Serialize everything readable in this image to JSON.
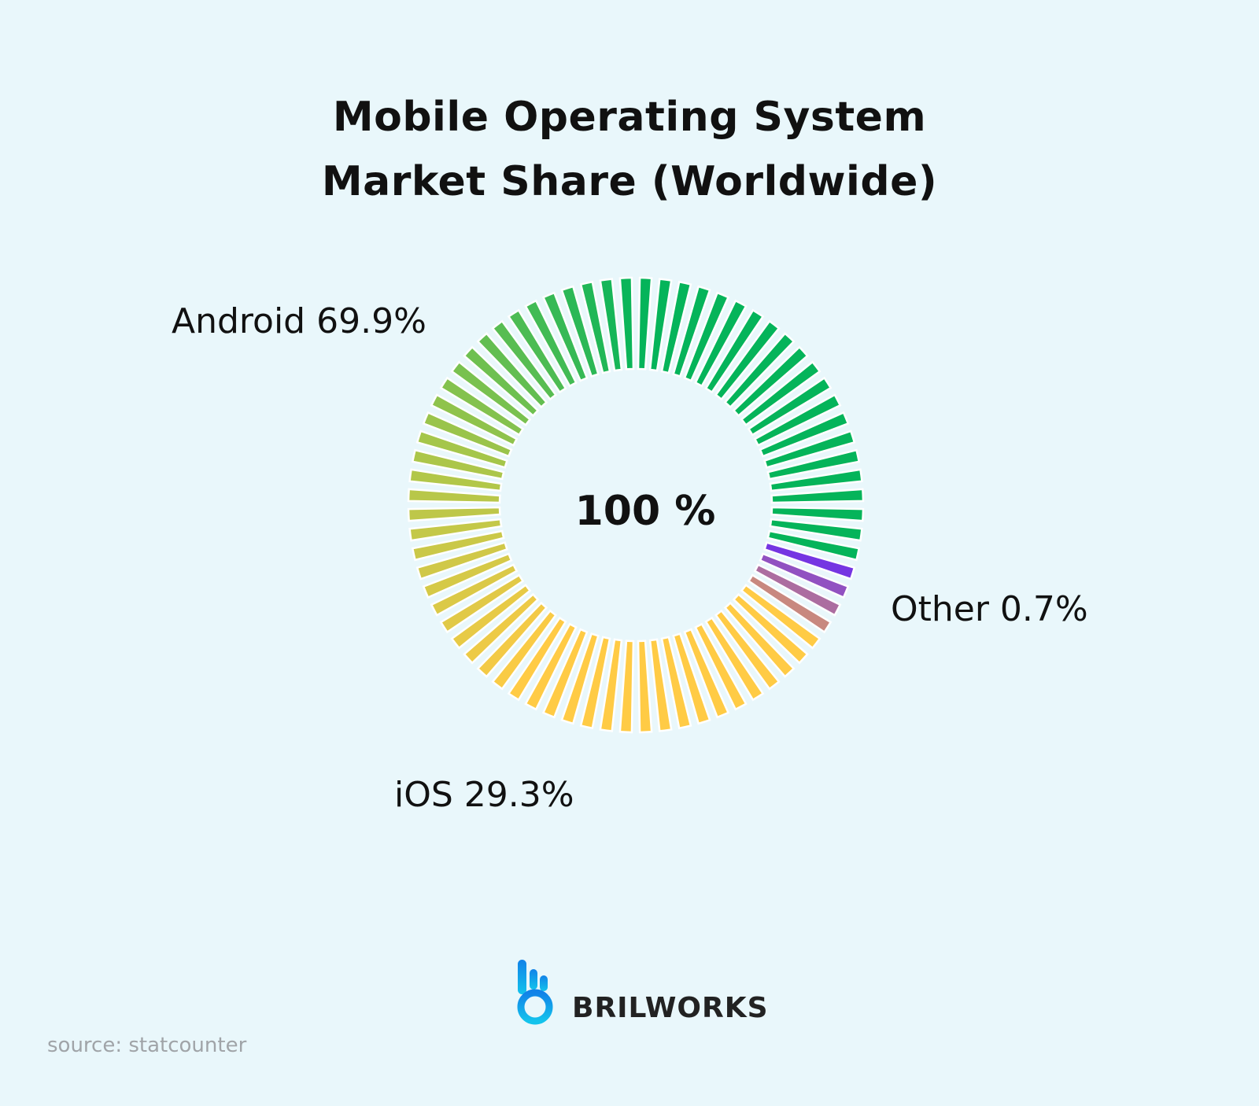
{
  "title_line1": "Mobile Operating System",
  "title_line2": "Market Share (Worldwide)",
  "center_text": "100 %",
  "labels": {
    "android": "Android 69.9%",
    "ios": "iOS 29.3%",
    "other": "Other 0.7%"
  },
  "brand": {
    "name": "BRILWORKS",
    "logo_icon": "brilworks-logo-icon"
  },
  "source": "source: statcounter",
  "colors": {
    "android": "#05b45a",
    "android_blend": "#a8c64a",
    "ios": "#ffcb45",
    "other": "#6a2aef",
    "other_blend": "#d99a6a",
    "background": "#e9f7fb",
    "logo_blue": "#1282e8",
    "logo_cyan": "#13c3ec"
  },
  "chart_data": {
    "type": "pie",
    "style": "donut",
    "categories": [
      "Android",
      "iOS",
      "Other"
    ],
    "values": [
      69.9,
      29.3,
      0.7
    ],
    "total_label": "100 %"
  }
}
